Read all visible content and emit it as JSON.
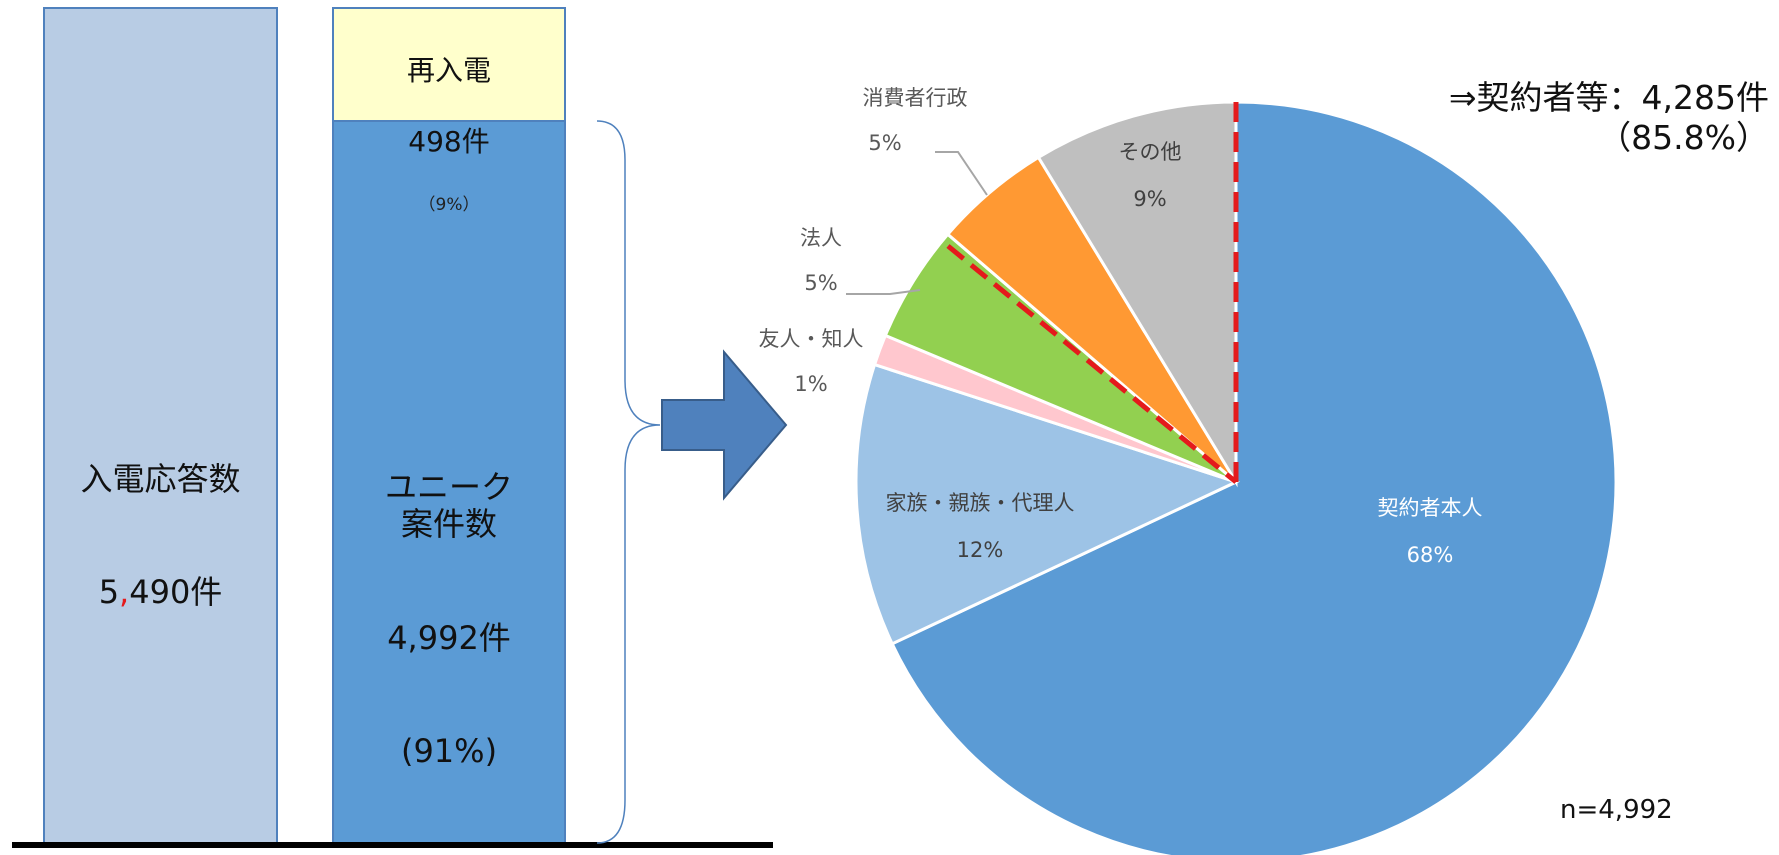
{
  "chart_data": [
    {
      "type": "bar",
      "stacked": true,
      "bars": [
        {
          "segments": [
            {
              "label": "入電応答数",
              "value_text": "5,490件",
              "value": 5490,
              "color": "#b8cce4"
            }
          ]
        },
        {
          "segments": [
            {
              "label": "ユニーク\n案件数",
              "value_text": "4,992件",
              "share_text": "(91%)",
              "value": 4992,
              "color": "#5b9bd5"
            },
            {
              "label": "再入電",
              "value_text": "498件",
              "share_text": "（9%）",
              "value": 498,
              "color": "#ffffcc"
            }
          ]
        }
      ]
    },
    {
      "type": "pie",
      "start_angle_deg": 0,
      "direction": "clockwise",
      "slices": [
        {
          "name": "契約者本人",
          "percent_text": "68%",
          "value": 68,
          "color": "#5b9bd5"
        },
        {
          "name": "家族・親族・代理人",
          "percent_text": "12%",
          "value": 12,
          "color": "#9dc3e6"
        },
        {
          "name": "友人・知人",
          "percent_text": "1%",
          "value": 1.3,
          "color": "#ffc7ce"
        },
        {
          "name": "法人",
          "percent_text": "5%",
          "value": 5,
          "color": "#92d050"
        },
        {
          "name": "消費者行政",
          "percent_text": "5%",
          "value": 5,
          "color": "#ff9933"
        },
        {
          "name": "その他",
          "percent_text": "9%",
          "value": 8.7,
          "color": "#bfbfbf"
        }
      ],
      "highlight_note": "⇒契約者等：4,285件",
      "highlight_percent": "（85.8%）",
      "sample_size": "n=4,992"
    }
  ],
  "colors": {
    "arrow_fill": "#4f81bd",
    "arrow_stroke": "#385d8a",
    "dashed_line": "#e41a1c",
    "brace": "#4f81bd",
    "number_accent": "#e41a1c"
  }
}
